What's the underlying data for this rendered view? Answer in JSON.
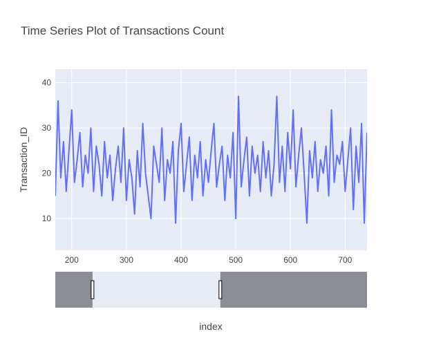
{
  "chart_data": {
    "type": "line",
    "title": "Time Series Plot of Transactions Count",
    "x_label": "index",
    "y_label": "Transaction_ID",
    "x": [
      170,
      175,
      180,
      185,
      190,
      195,
      200,
      205,
      210,
      215,
      220,
      225,
      230,
      235,
      240,
      245,
      250,
      255,
      260,
      265,
      270,
      275,
      280,
      285,
      290,
      295,
      300,
      305,
      310,
      315,
      320,
      325,
      330,
      335,
      340,
      345,
      350,
      355,
      360,
      365,
      370,
      375,
      380,
      385,
      390,
      395,
      400,
      405,
      410,
      415,
      420,
      425,
      430,
      435,
      440,
      445,
      450,
      455,
      460,
      465,
      470,
      475,
      480,
      485,
      490,
      495,
      500,
      505,
      510,
      515,
      520,
      525,
      530,
      535,
      540,
      545,
      550,
      555,
      560,
      565,
      570,
      575,
      580,
      585,
      590,
      595,
      600,
      605,
      610,
      615,
      620,
      625,
      630,
      635,
      640,
      645,
      650,
      655,
      660,
      665,
      670,
      675,
      680,
      685,
      690,
      695,
      700,
      705,
      710,
      715,
      720,
      725,
      730,
      735,
      740
    ],
    "series": [
      {
        "name": "Transaction_ID",
        "color": "#636efa",
        "values": [
          15,
          36,
          19,
          27,
          16,
          25,
          34,
          18,
          23,
          29,
          17,
          24,
          20,
          30,
          16,
          26,
          22,
          15,
          27,
          19,
          24,
          14,
          21,
          26,
          18,
          30,
          14,
          23,
          19,
          11,
          25,
          17,
          31,
          20,
          15,
          10,
          26,
          22,
          18,
          30,
          14,
          23,
          20,
          27,
          9,
          25,
          31,
          16,
          22,
          28,
          14,
          24,
          19,
          27,
          15,
          23,
          18,
          25,
          31,
          17,
          22,
          26,
          14,
          24,
          19,
          29,
          10,
          37,
          17,
          23,
          28,
          15,
          26,
          20,
          24,
          16,
          27,
          19,
          25,
          15,
          22,
          37,
          18,
          26,
          16,
          29,
          21,
          34,
          17,
          24,
          30,
          20,
          9,
          25,
          19,
          27,
          16,
          23,
          20,
          26,
          15,
          34,
          18,
          24,
          22,
          27,
          16,
          23,
          30,
          12,
          26,
          18,
          31,
          9,
          29
        ]
      }
    ],
    "xlim": [
      170,
      740
    ],
    "ylim": [
      3,
      43
    ],
    "xticks": [
      200,
      300,
      400,
      500,
      600,
      700
    ],
    "yticks": [
      10,
      20,
      30,
      40
    ],
    "grid": true,
    "rangeslider": {
      "xlim": [
        4,
        1394
      ],
      "selection": [
        170,
        740
      ]
    }
  }
}
